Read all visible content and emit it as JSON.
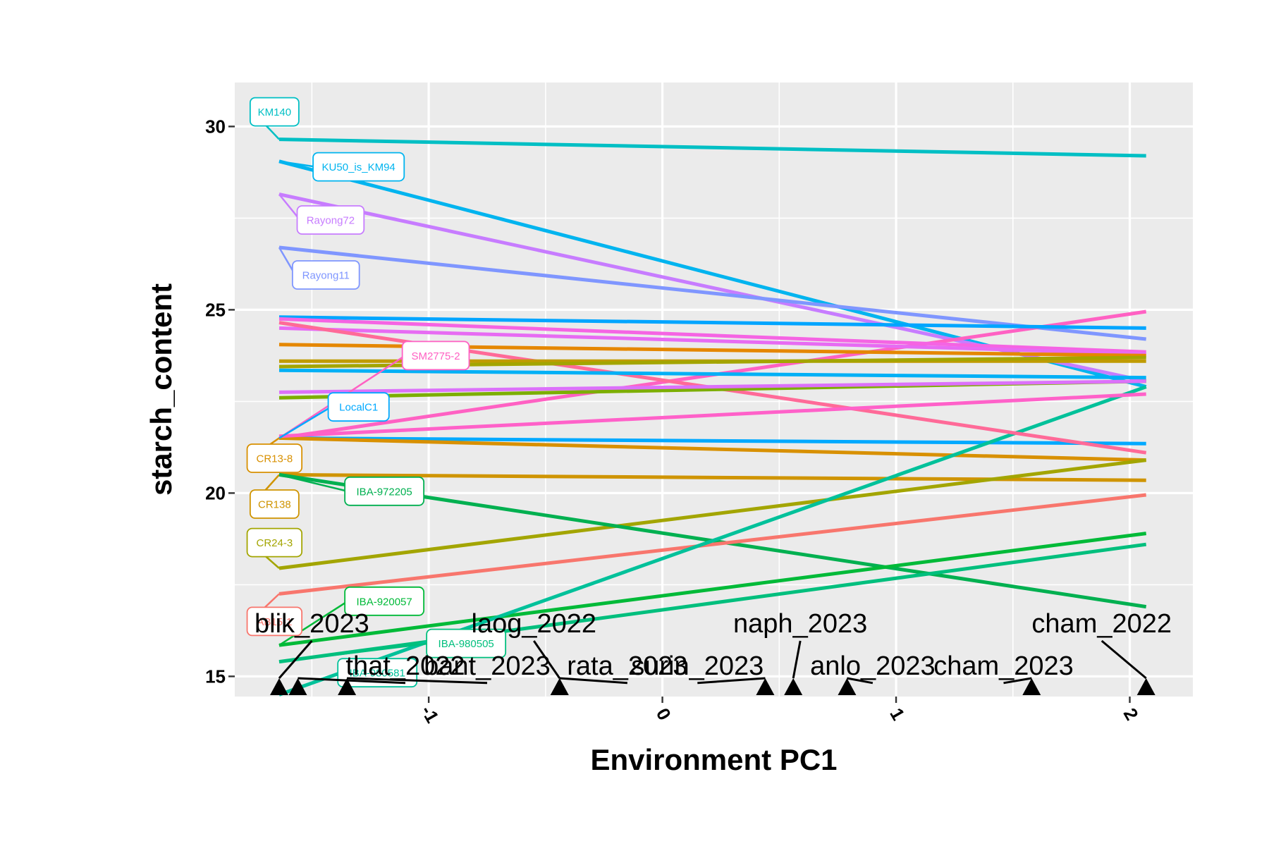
{
  "chart_data": {
    "type": "line",
    "title": "",
    "xlabel": "Environment PC1",
    "ylabel": "starch_content",
    "xlim": [
      -1.83,
      2.27
    ],
    "ylim": [
      14.45,
      31.2
    ],
    "x_ticks": [
      -1,
      0,
      1,
      2
    ],
    "x_tick_labels": [
      "-1",
      "0",
      "1",
      "2"
    ],
    "y_ticks": [
      15,
      20,
      25,
      30
    ],
    "y_tick_labels": [
      "15",
      "20",
      "25",
      "30"
    ],
    "grid": true,
    "legend": "none",
    "x_range_lines": [
      -1.64,
      2.07
    ],
    "series": [
      {
        "name": "KM140",
        "y_start": 29.65,
        "y_end": 29.2,
        "color": "#00BFC4",
        "label_x": -1.66,
        "label_y": 30.4
      },
      {
        "name": "KU50_is_KM94",
        "y_start": 29.05,
        "y_end": 22.9,
        "color": "#00B4EF",
        "label_x": -1.3,
        "label_y": 28.9
      },
      {
        "name": "Rayong72",
        "y_start": 28.15,
        "y_end": 23.05,
        "color": "#C77CFF",
        "label_x": -1.42,
        "label_y": 27.45
      },
      {
        "name": "Rayong11",
        "y_start": 26.7,
        "y_end": 24.2,
        "color": "#7F96FF",
        "label_x": -1.44,
        "label_y": 25.95
      },
      {
        "name": "SM2775-2",
        "y_start": 21.5,
        "y_end": 24.95,
        "color": "#FF61C3",
        "label_x": -0.97,
        "label_y": 23.75
      },
      {
        "name": "LocalC1",
        "y_start": 21.5,
        "y_end": 21.35,
        "color": "#00A9FF",
        "label_x": -1.3,
        "label_y": 22.35
      },
      {
        "name": "CR13-8",
        "y_start": 21.5,
        "y_end": 20.9,
        "color": "#D89000",
        "label_x": -1.66,
        "label_y": 20.95
      },
      {
        "name": "CR138",
        "y_start": 20.5,
        "y_end": 20.35,
        "color": "#CF9400",
        "label_x": -1.66,
        "label_y": 19.7
      },
      {
        "name": "CR24-3",
        "y_start": 17.95,
        "y_end": 20.9,
        "color": "#A3A500",
        "label_x": -1.66,
        "label_y": 18.65
      },
      {
        "name": "IBA-972205",
        "y_start": 20.5,
        "y_end": 16.9,
        "color": "#00B050",
        "label_x": -1.19,
        "label_y": 20.05
      },
      {
        "name": "IBA-920057",
        "y_start": 15.85,
        "y_end": 18.9,
        "color": "#00BA38",
        "label_x": -1.19,
        "label_y": 17.05
      },
      {
        "name": "AB15-1",
        "y_start": 17.25,
        "y_end": 19.95,
        "color": "#F8766D",
        "label_x": -1.66,
        "label_y": 16.5
      },
      {
        "name": "IBA-980505",
        "y_start": 15.4,
        "y_end": 18.6,
        "color": "#00BF7D",
        "label_x": -0.84,
        "label_y": 15.9
      },
      {
        "name": "IBA-980581",
        "y_start": 14.5,
        "y_end": 22.9,
        "color": "#00C19A",
        "label_x": -1.22,
        "label_y": 15.1
      },
      {
        "name": "",
        "y_start": 24.8,
        "y_end": 24.5,
        "color": "#00A5FF",
        "label_x": null,
        "label_y": null
      },
      {
        "name": "",
        "y_start": 24.75,
        "y_end": 23.85,
        "color": "#F564E3",
        "label_x": null,
        "label_y": null
      },
      {
        "name": "",
        "y_start": 24.5,
        "y_end": 23.8,
        "color": "#E76BF3",
        "label_x": null,
        "label_y": null
      },
      {
        "name": "",
        "y_start": 24.65,
        "y_end": 21.1,
        "color": "#FF6A98",
        "label_x": null,
        "label_y": null
      },
      {
        "name": "",
        "y_start": 24.05,
        "y_end": 23.75,
        "color": "#E58700",
        "label_x": null,
        "label_y": null
      },
      {
        "name": "",
        "y_start": 23.6,
        "y_end": 23.6,
        "color": "#C09B00",
        "label_x": null,
        "label_y": null
      },
      {
        "name": "",
        "y_start": 23.45,
        "y_end": 23.7,
        "color": "#A3A500",
        "label_x": null,
        "label_y": null
      },
      {
        "name": "",
        "y_start": 23.35,
        "y_end": 23.15,
        "color": "#00B0F6",
        "label_x": null,
        "label_y": null
      },
      {
        "name": "",
        "y_start": 22.6,
        "y_end": 23.05,
        "color": "#7CAE00",
        "label_x": null,
        "label_y": null
      },
      {
        "name": "",
        "y_start": 22.75,
        "y_end": 23.05,
        "color": "#DC71FA",
        "label_x": null,
        "label_y": null
      },
      {
        "name": "",
        "y_start": 21.55,
        "y_end": 22.7,
        "color": "#FF61C9",
        "label_x": null,
        "label_y": null
      }
    ],
    "environments": [
      {
        "name": "blik_2023",
        "x": -1.64,
        "label_x": -1.5,
        "label_y": 16.2
      },
      {
        "name": "that_2022",
        "x": -1.56,
        "label_x": -1.1,
        "label_y": 15.05
      },
      {
        "name": "bant_2023",
        "x": -1.35,
        "label_x": -0.75,
        "label_y": 15.05
      },
      {
        "name": "laog_2022",
        "x": -0.44,
        "label_x": -0.55,
        "label_y": 16.2
      },
      {
        "name": "rata_2023",
        "x": -0.44,
        "label_x": -0.15,
        "label_y": 15.05
      },
      {
        "name": "surin_2023",
        "x": 0.44,
        "label_x": 0.15,
        "label_y": 15.05
      },
      {
        "name": "naph_2023",
        "x": 0.56,
        "label_x": 0.59,
        "label_y": 16.2
      },
      {
        "name": "anlo_2023",
        "x": 0.79,
        "label_x": 0.9,
        "label_y": 15.05
      },
      {
        "name": "cham_2023",
        "x": 1.58,
        "label_x": 1.46,
        "label_y": 15.05
      },
      {
        "name": "cham_2022",
        "x": 2.07,
        "label_x": 1.88,
        "label_y": 16.2
      }
    ]
  }
}
